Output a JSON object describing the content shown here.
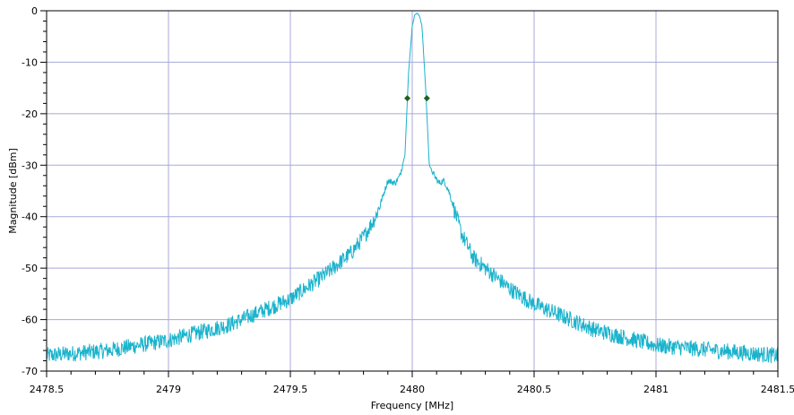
{
  "chart_data": {
    "type": "line",
    "title": "",
    "xlabel": "Frequency [MHz]",
    "ylabel": "Magnitude [dBm]",
    "xlim": [
      2478.5,
      2481.5
    ],
    "ylim": [
      -70,
      0
    ],
    "xticks": [
      "2478.5",
      "2479",
      "2479.5",
      "2480",
      "2480.5",
      "2481",
      "2481.5"
    ],
    "yticks": [
      "0",
      "-10",
      "-20",
      "-30",
      "-40",
      "-50",
      "-60",
      "-70"
    ],
    "grid": true,
    "legend": "none",
    "series": [
      {
        "color": "#1ab3cc",
        "x": [
          2478.5,
          2478.75,
          2479.0,
          2479.25,
          2479.5,
          2479.65,
          2479.75,
          2479.8,
          2479.85,
          2479.88,
          2479.9,
          2479.93,
          2479.95,
          2479.97,
          2479.985,
          2480.0,
          2480.01,
          2480.02,
          2480.03,
          2480.04,
          2480.055,
          2480.07,
          2480.09,
          2480.11,
          2480.13,
          2480.15,
          2480.2,
          2480.25,
          2480.4,
          2480.5,
          2480.75,
          2481.0,
          2481.25,
          2481.5
        ],
        "y": [
          -67,
          -66,
          -64,
          -61,
          -56,
          -51,
          -47,
          -44,
          -40,
          -36,
          -33,
          -33.5,
          -32,
          -28,
          -12,
          -3,
          -0.8,
          -0.5,
          -1,
          -3,
          -15,
          -30,
          -32,
          -33.5,
          -33,
          -35,
          -43,
          -48,
          -54,
          -57,
          -62,
          -65,
          -66,
          -67
        ]
      }
    ],
    "markers": [
      {
        "x": 2479.98,
        "y": -17,
        "color": "#1f5f1f"
      },
      {
        "x": 2480.06,
        "y": -17,
        "color": "#1f5f1f"
      }
    ]
  }
}
